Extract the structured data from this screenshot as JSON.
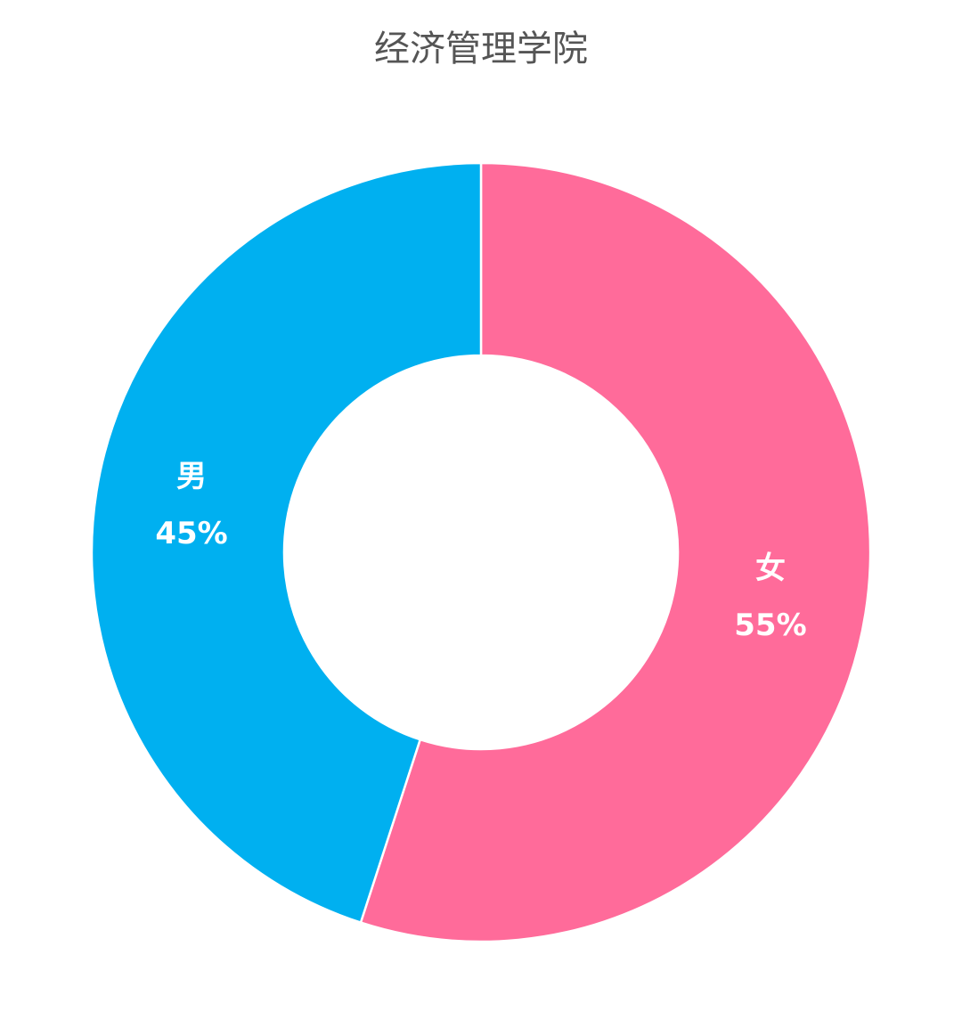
{
  "chart_data": {
    "type": "pie",
    "title": "经济管理学院",
    "categories": [
      "女",
      "男"
    ],
    "values": [
      55,
      45
    ],
    "value_labels": [
      "55%",
      "45%"
    ],
    "colors": [
      "#ff6b9a",
      "#00b0f0"
    ]
  }
}
